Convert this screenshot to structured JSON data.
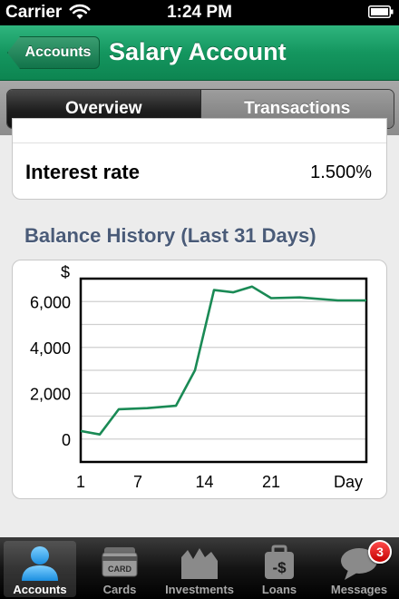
{
  "status_bar": {
    "carrier": "Carrier",
    "time": "1:24 PM"
  },
  "nav": {
    "back_label": "Accounts",
    "title": "Salary Account"
  },
  "segments": [
    {
      "label": "Overview",
      "active": true
    },
    {
      "label": "Transactions",
      "active": false
    }
  ],
  "interest": {
    "label": "Interest rate",
    "value": "1.500%"
  },
  "section_title": "Balance History (Last 31 Days)",
  "chart_data": {
    "type": "line",
    "ylabel": "$",
    "xlabel": "Day",
    "x_ticks": [
      "1",
      "7",
      "14",
      "21"
    ],
    "y_ticks": [
      "0",
      "2,000",
      "4,000",
      "6,000"
    ],
    "xlim": [
      1,
      31
    ],
    "ylim": [
      -1000,
      7000
    ],
    "grid": true,
    "line_color": "#1a8a55",
    "series": [
      {
        "x": [
          1,
          3,
          5,
          8,
          11,
          13,
          15,
          17,
          19,
          21,
          24,
          28,
          31
        ],
        "y": [
          350,
          200,
          1300,
          1350,
          1450,
          3000,
          6500,
          6400,
          6650,
          6150,
          6180,
          6050,
          6050
        ]
      }
    ]
  },
  "tabs": [
    {
      "label": "Accounts",
      "icon": "accounts-icon",
      "active": true
    },
    {
      "label": "Cards",
      "icon": "card-icon",
      "card_text": "CARD"
    },
    {
      "label": "Investments",
      "icon": "investments-icon"
    },
    {
      "label": "Loans",
      "icon": "loans-icon",
      "loan_text": "-$"
    },
    {
      "label": "Messages",
      "icon": "messages-icon",
      "badge": "3"
    }
  ]
}
